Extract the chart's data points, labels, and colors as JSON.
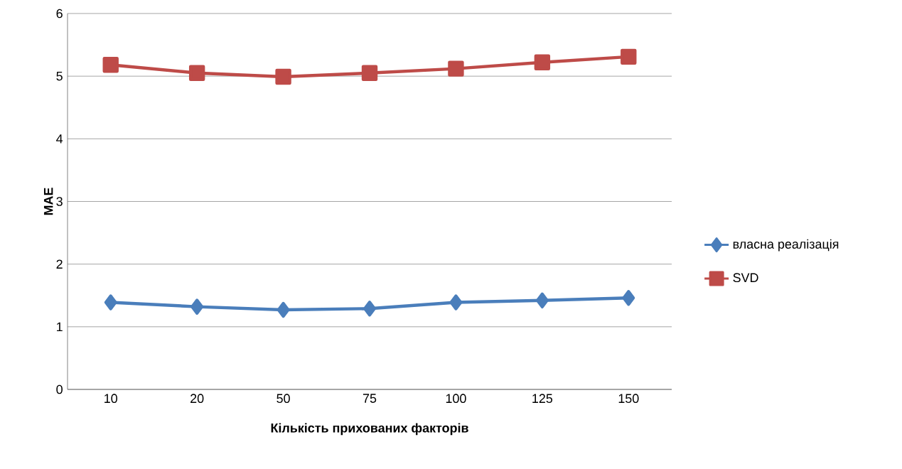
{
  "chart_data": {
    "type": "line",
    "xlabel": "Кількість прихованих факторів",
    "ylabel": "MAE",
    "categories": [
      "10",
      "20",
      "50",
      "75",
      "100",
      "125",
      "150"
    ],
    "series": [
      {
        "name": "власна реалізація",
        "color": "#4a7ebb",
        "marker": "diamond",
        "values": [
          1.39,
          1.32,
          1.27,
          1.29,
          1.39,
          1.42,
          1.46
        ]
      },
      {
        "name": "SVD",
        "color": "#be4b48",
        "marker": "square",
        "values": [
          5.18,
          5.05,
          4.99,
          5.05,
          5.12,
          5.22,
          5.31
        ]
      }
    ],
    "ylim": [
      0,
      6
    ],
    "yticks": [
      0,
      1,
      2,
      3,
      4,
      5,
      6
    ],
    "grid": "y",
    "legend": "right",
    "line_style": "solid"
  }
}
